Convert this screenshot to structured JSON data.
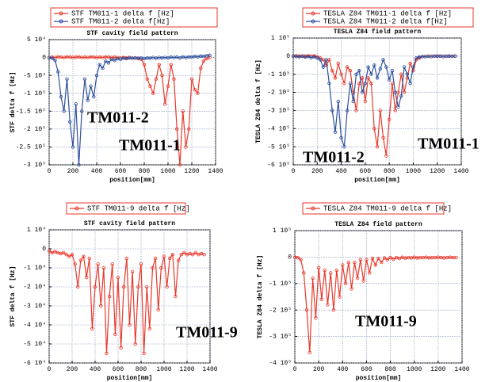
{
  "chart_data": [
    {
      "type": "line",
      "title": "STF cavity field pattern",
      "xlabel": "position[mm]",
      "ylabel": "STF delta f [Hz]",
      "x": [
        0,
        25,
        50,
        75,
        100,
        125,
        150,
        175,
        200,
        225,
        250,
        275,
        300,
        325,
        350,
        375,
        400,
        425,
        450,
        475,
        500,
        525,
        550,
        575,
        600,
        625,
        650,
        675,
        700,
        725,
        750,
        775,
        800,
        825,
        850,
        875,
        900,
        925,
        950,
        975,
        1000,
        1025,
        1050,
        1075,
        1100,
        1125,
        1150,
        1175,
        1200,
        1225,
        1250,
        1275,
        1300,
        1325,
        1350
      ],
      "xlim": [
        0,
        1400
      ],
      "xticks": [
        0,
        200,
        400,
        600,
        800,
        1000,
        1200,
        1400
      ],
      "ylim": [
        -300000,
        50000
      ],
      "yticks": [
        {
          "value": 50000,
          "label": "5 10⁴"
        },
        0,
        {
          "value": -50000,
          "label": "-5 10⁴"
        },
        {
          "value": -100000,
          "label": "-1 10⁵"
        },
        {
          "value": -150000,
          "label": "-1.5 10⁵"
        },
        {
          "value": -200000,
          "label": "-2 10⁵"
        },
        {
          "value": -250000,
          "label": "-2.5 10⁵"
        },
        {
          "value": -300000,
          "label": "-3 10⁵"
        }
      ],
      "grid": true,
      "series": [
        {
          "name": "STF TM011-1 delta f [Hz]",
          "color": "#e8392b",
          "values": [
            0,
            1000,
            0,
            2000,
            1000,
            0,
            2000,
            1000,
            0,
            1000,
            2000,
            0,
            1000,
            0,
            2000,
            1000,
            0,
            1000,
            0,
            2000,
            1000,
            0,
            1000,
            0,
            -1000,
            0,
            -1000,
            0,
            -2000,
            -1000,
            -3000,
            -5000,
            -20000,
            -60000,
            -80000,
            -100000,
            -60000,
            -20000,
            -50000,
            -130000,
            -80000,
            -20000,
            -60000,
            -200000,
            -300000,
            -150000,
            -250000,
            -200000,
            -60000,
            -90000,
            -100000,
            -30000,
            -10000,
            -3000,
            0
          ]
        },
        {
          "name": "STF TM011-2 delta f[Hz]",
          "color": "#2e4f9c",
          "values": [
            0,
            -2000,
            -8000,
            -40000,
            -110000,
            -150000,
            -60000,
            -180000,
            -250000,
            -130000,
            -300000,
            -150000,
            -60000,
            -120000,
            -80000,
            -110000,
            -50000,
            -20000,
            -30000,
            -10000,
            -15000,
            -5000,
            -8000,
            -3000,
            -5000,
            -2000,
            -3000,
            -1000,
            -2000,
            -1000,
            -2000,
            -1000,
            -3000,
            -1000,
            -2000,
            0,
            -2000,
            0,
            -1000,
            0,
            -1000,
            1000,
            0,
            1000,
            -1000,
            2000,
            0,
            2000,
            1000,
            3000,
            2000,
            4000,
            3000,
            5000,
            6000
          ]
        }
      ],
      "annotations": [
        {
          "text": "TM011-2",
          "color": "#2b3a7a"
        },
        {
          "text": "TM011-1",
          "color": "#e8392b"
        }
      ]
    },
    {
      "type": "line",
      "title": "TESLA Z84 field pattern",
      "xlabel": "position[mm]",
      "ylabel": "TESLA Z84 delta f [Hz]",
      "x": [
        0,
        25,
        50,
        75,
        100,
        125,
        150,
        175,
        200,
        225,
        250,
        275,
        300,
        325,
        350,
        375,
        400,
        425,
        450,
        475,
        500,
        525,
        550,
        575,
        600,
        625,
        650,
        675,
        700,
        725,
        750,
        775,
        800,
        825,
        850,
        875,
        900,
        925,
        950,
        975,
        1000,
        1025,
        1050,
        1075,
        1100,
        1125,
        1150,
        1175,
        1200,
        1225,
        1250,
        1275,
        1300,
        1325,
        1350
      ],
      "xlim": [
        0,
        1400
      ],
      "xticks": [
        0,
        200,
        400,
        600,
        800,
        1000,
        1200,
        1400
      ],
      "ylim": [
        -600000,
        100000
      ],
      "yticks": [
        {
          "value": 100000,
          "label": "1 10⁵"
        },
        0,
        {
          "value": -100000,
          "label": "-1 10⁵"
        },
        {
          "value": -200000,
          "label": "-2 10⁵"
        },
        {
          "value": -300000,
          "label": "-3 10⁵"
        },
        {
          "value": -400000,
          "label": "-4 10⁵"
        },
        {
          "value": -500000,
          "label": "-5 10⁵"
        },
        {
          "value": -600000,
          "label": "-6 10⁵"
        }
      ],
      "grid": true,
      "series": [
        {
          "name": "TESLA Z84 TM011-1 delta f [Hz]",
          "color": "#e8392b",
          "values": [
            0,
            2000,
            0,
            1000,
            0,
            2000,
            0,
            1000,
            -3000,
            -10000,
            -20000,
            -50000,
            -20000,
            -80000,
            -120000,
            -40000,
            -100000,
            -150000,
            -60000,
            -80000,
            -200000,
            -300000,
            -150000,
            -120000,
            -250000,
            -120000,
            -150000,
            -400000,
            -500000,
            -300000,
            -450000,
            -550000,
            -350000,
            -150000,
            -300000,
            -200000,
            -100000,
            -200000,
            -120000,
            -40000,
            -80000,
            -20000,
            -10000,
            -3000,
            -2000,
            0,
            -1000,
            0,
            1000,
            0,
            -1000,
            0,
            1000,
            0,
            0
          ]
        },
        {
          "name": "TESLA Z84 TM011-2 delta f[Hz]",
          "color": "#2e4f9c",
          "values": [
            0,
            -2000,
            -3000,
            -1000,
            -5000,
            -2000,
            -8000,
            -3000,
            -10000,
            -20000,
            -60000,
            -20000,
            -150000,
            -300000,
            -420000,
            -250000,
            -450000,
            -500000,
            -300000,
            -150000,
            -250000,
            -100000,
            -80000,
            -200000,
            -150000,
            -60000,
            -100000,
            -50000,
            -120000,
            -70000,
            -20000,
            -60000,
            -130000,
            -80000,
            -200000,
            -280000,
            -220000,
            -60000,
            -100000,
            -150000,
            -60000,
            -10000,
            -5000,
            -2000,
            -3000,
            -1000,
            -2000,
            0,
            -1000,
            0,
            -2000,
            -1000,
            0,
            -1000,
            0
          ]
        }
      ],
      "annotations": [
        {
          "text": "TM011-2",
          "color": "#2b3a7a"
        },
        {
          "text": "TM011-1",
          "color": "#e8392b"
        }
      ]
    },
    {
      "type": "line",
      "title": "STF cavity field pattern",
      "xlabel": "position[mm]",
      "ylabel": "STF delta f [Hz]",
      "x": [
        0,
        25,
        50,
        75,
        100,
        125,
        150,
        175,
        200,
        225,
        250,
        275,
        300,
        325,
        350,
        375,
        400,
        425,
        450,
        475,
        500,
        525,
        550,
        575,
        600,
        625,
        650,
        675,
        700,
        725,
        750,
        775,
        800,
        825,
        850,
        875,
        900,
        925,
        950,
        975,
        1000,
        1025,
        1050,
        1075,
        1100,
        1125,
        1150,
        1175,
        1200,
        1225,
        1250,
        1275,
        1300,
        1325,
        1350
      ],
      "xlim": [
        0,
        1400
      ],
      "xticks": [
        0,
        200,
        400,
        600,
        800,
        1000,
        1200,
        1400
      ],
      "ylim": [
        -60000,
        10000
      ],
      "yticks": [
        {
          "value": 10000,
          "label": "1 10⁴"
        },
        0,
        {
          "value": -10000,
          "label": "-1 10⁴"
        },
        {
          "value": -20000,
          "label": "-2 10⁴"
        },
        {
          "value": -30000,
          "label": "-3 10⁴"
        },
        {
          "value": -40000,
          "label": "-4 10⁴"
        },
        {
          "value": -50000,
          "label": "-5 10⁴"
        },
        {
          "value": -60000,
          "label": "-6 10⁴"
        }
      ],
      "grid": true,
      "series": [
        {
          "name": "STF TM011-9 delta f [Hz]",
          "color": "#e8392b",
          "values": [
            -1000,
            -2000,
            -1500,
            -2000,
            -2500,
            -2000,
            -3000,
            -4000,
            -3000,
            -8000,
            -20000,
            -6000,
            -4000,
            -15000,
            -5000,
            -42000,
            -20000,
            -8000,
            -30000,
            -10000,
            -55000,
            -25000,
            -8000,
            -45000,
            -15000,
            -52000,
            -20000,
            -5000,
            -40000,
            -12000,
            -50000,
            -20000,
            -8000,
            -55000,
            -20000,
            -42000,
            -10000,
            -5000,
            -32000,
            -10000,
            -4000,
            -20000,
            -5000,
            -3000,
            -25000,
            -6000,
            -3000,
            -2000,
            -3000,
            -2500,
            -3000,
            -2000,
            -3000,
            -2500,
            -3000
          ]
        }
      ],
      "annotations": [
        {
          "text": "TM011-9",
          "color": "#e8392b"
        }
      ]
    },
    {
      "type": "line",
      "title": "TESLA Z84 field pattern",
      "xlabel": "position[mm]",
      "ylabel": "TESLA Z84 delta f [Hz]",
      "x": [
        0,
        25,
        50,
        75,
        100,
        125,
        150,
        175,
        200,
        225,
        250,
        275,
        300,
        325,
        350,
        375,
        400,
        425,
        450,
        475,
        500,
        525,
        550,
        575,
        600,
        625,
        650,
        675,
        700,
        725,
        750,
        775,
        800,
        825,
        850,
        875,
        900,
        925,
        950,
        975,
        1000,
        1025,
        1050,
        1075,
        1100,
        1125,
        1150,
        1175,
        1200,
        1225,
        1250,
        1275,
        1300,
        1325,
        1350
      ],
      "xlim": [
        0,
        1400
      ],
      "xticks": [
        0,
        200,
        400,
        600,
        800,
        1000,
        1200,
        1400
      ],
      "ylim": [
        -400000,
        100000
      ],
      "yticks": [
        {
          "value": 100000,
          "label": "1 10⁵"
        },
        0,
        {
          "value": -100000,
          "label": "-1 10⁵"
        },
        {
          "value": -200000,
          "label": "-2 10⁵"
        },
        {
          "value": -300000,
          "label": "-3 10⁵"
        },
        {
          "value": -400000,
          "label": "-4 10⁵"
        }
      ],
      "grid": true,
      "series": [
        {
          "name": "TESLA Z84 TM011-9 delta f [Hz]",
          "color": "#e8392b",
          "values": [
            -1000,
            -2000,
            -10000,
            -60000,
            -200000,
            -360000,
            -80000,
            -230000,
            -40000,
            -160000,
            -50000,
            -180000,
            -60000,
            -200000,
            -50000,
            -150000,
            -30000,
            -100000,
            -20000,
            -120000,
            -20000,
            -80000,
            -10000,
            -90000,
            -10000,
            -60000,
            -5000,
            -30000,
            -5000,
            -20000,
            -3000,
            -10000,
            -2000,
            -8000,
            -2000,
            -5000,
            -1000,
            -4000,
            -2000,
            -3000,
            -1000,
            -3000,
            -2000,
            -2000,
            -1000,
            -3000,
            -2000,
            -2000,
            -1000,
            -2000,
            -3000,
            -2000,
            -1000,
            -2000,
            -2000
          ]
        }
      ],
      "annotations": [
        {
          "text": "TM011-9",
          "color": "#e8392b"
        }
      ]
    }
  ]
}
